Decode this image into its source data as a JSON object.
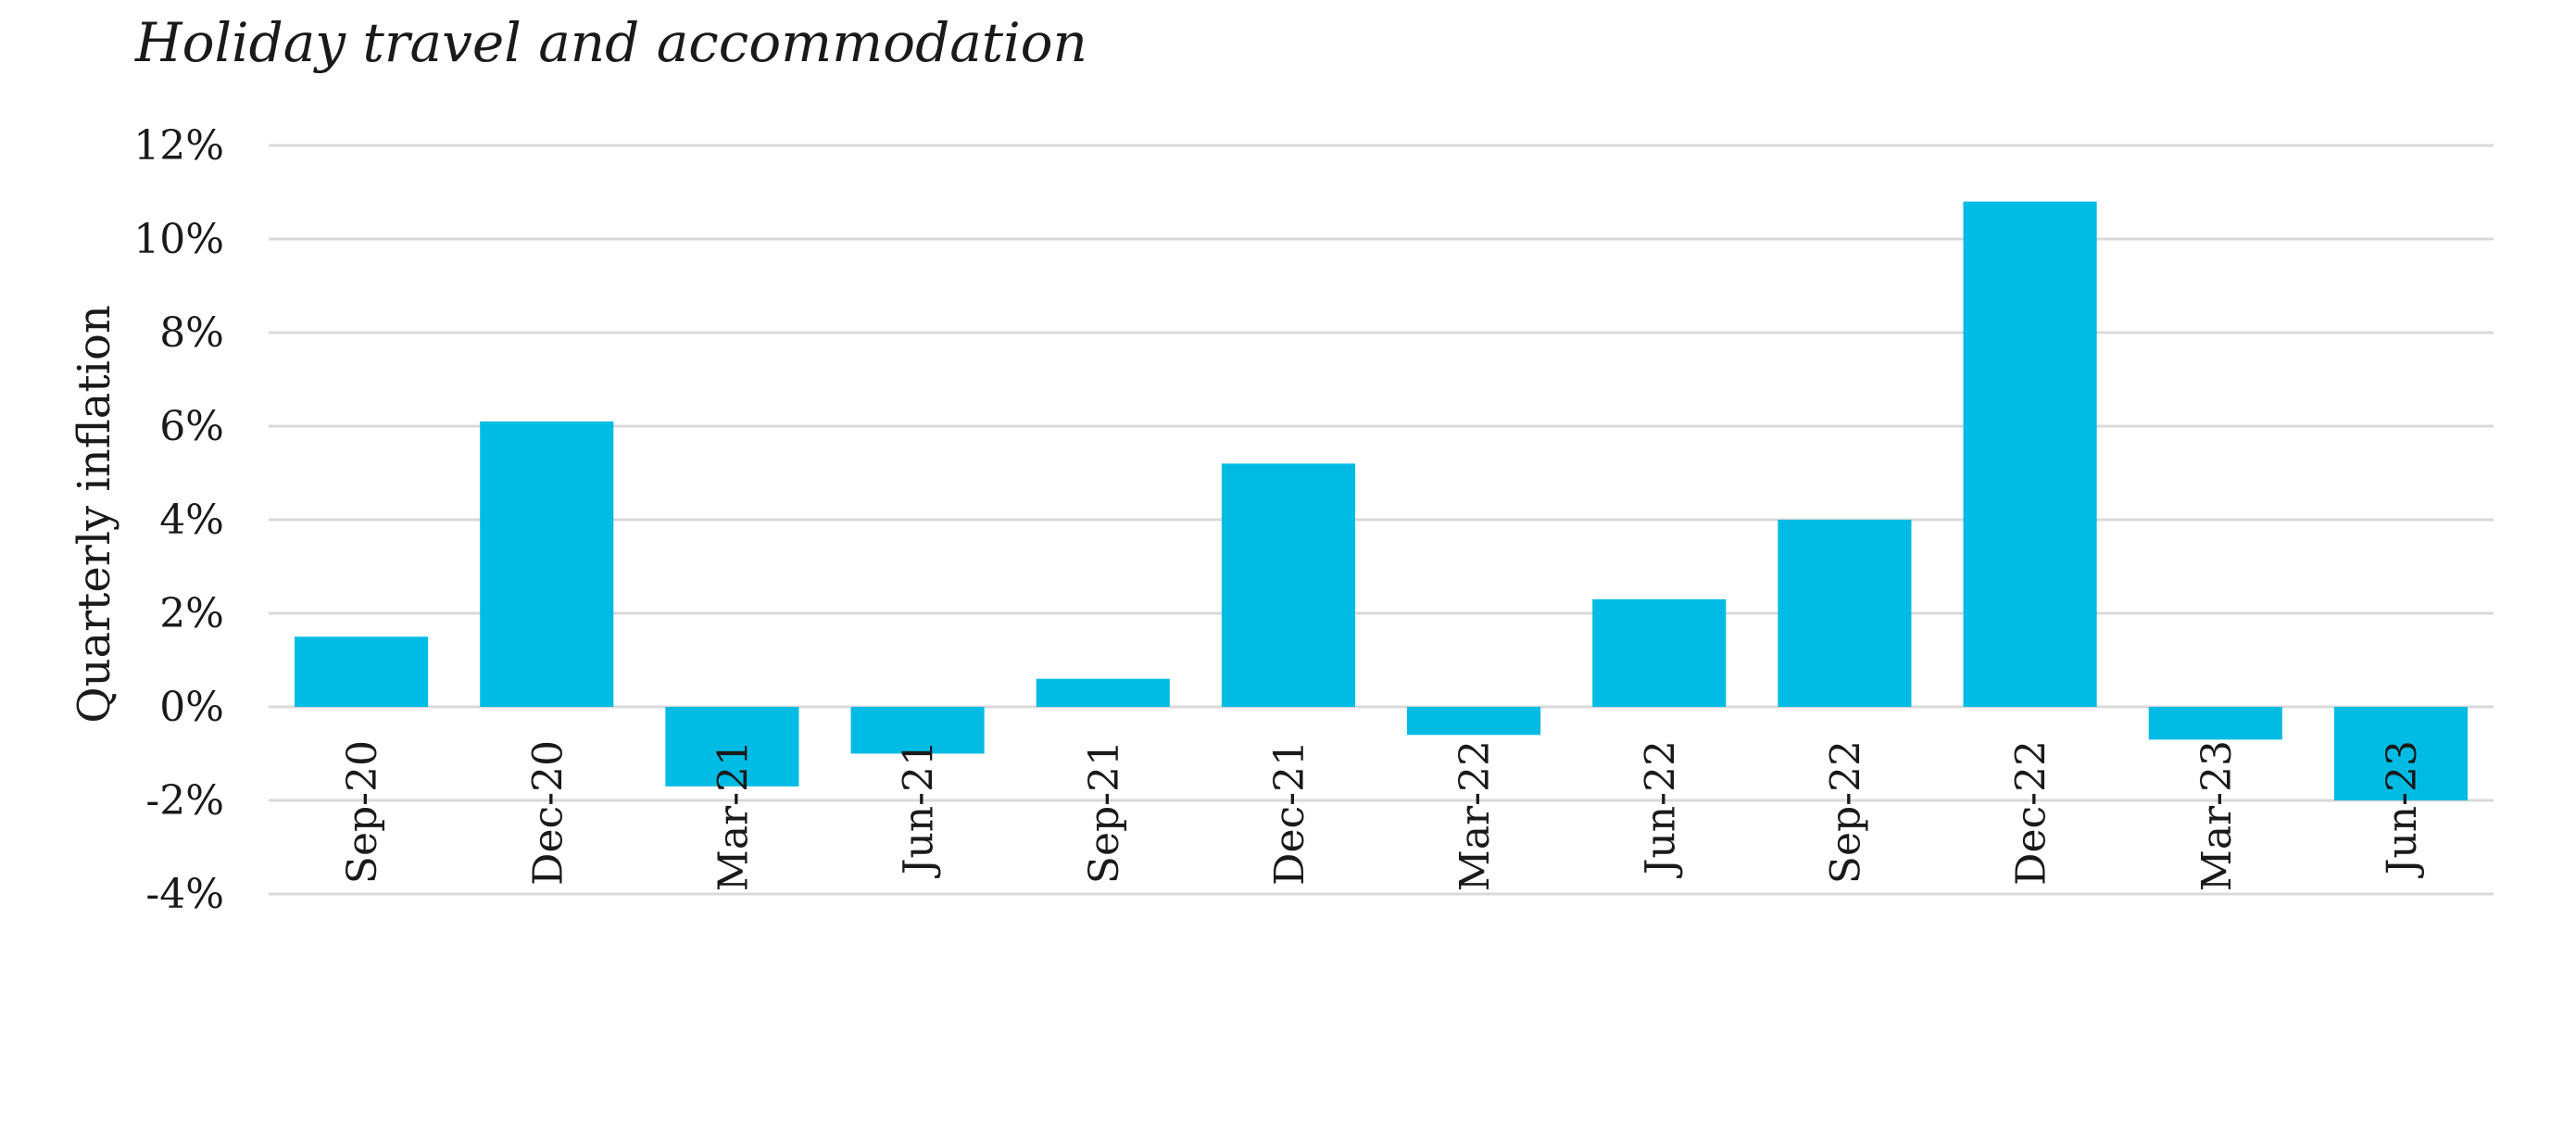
{
  "chart_data": {
    "type": "bar",
    "title": "Holiday travel and accommodation",
    "xlabel": "",
    "ylabel": "Quarterly inflation",
    "categories": [
      "Sep-20",
      "Dec-20",
      "Mar-21",
      "Jun-21",
      "Sep-21",
      "Dec-21",
      "Mar-22",
      "Jun-22",
      "Sep-22",
      "Dec-22",
      "Mar-23",
      "Jun-23"
    ],
    "values": [
      1.5,
      6.1,
      -1.7,
      -1.0,
      0.6,
      5.2,
      -0.6,
      2.3,
      4.0,
      10.8,
      -0.7,
      -2.0
    ],
    "ylim": [
      -4,
      12
    ],
    "yticks": [
      12,
      10,
      8,
      6,
      4,
      2,
      0,
      -2,
      -4
    ],
    "ytick_labels": [
      "12%",
      "10%",
      "8%",
      "6%",
      "4%",
      "2%",
      "0%",
      "-2%",
      "-4%"
    ],
    "grid": true,
    "legend": "none",
    "bar_color": "#00BCE4",
    "grid_color": "#d9d9d9"
  }
}
